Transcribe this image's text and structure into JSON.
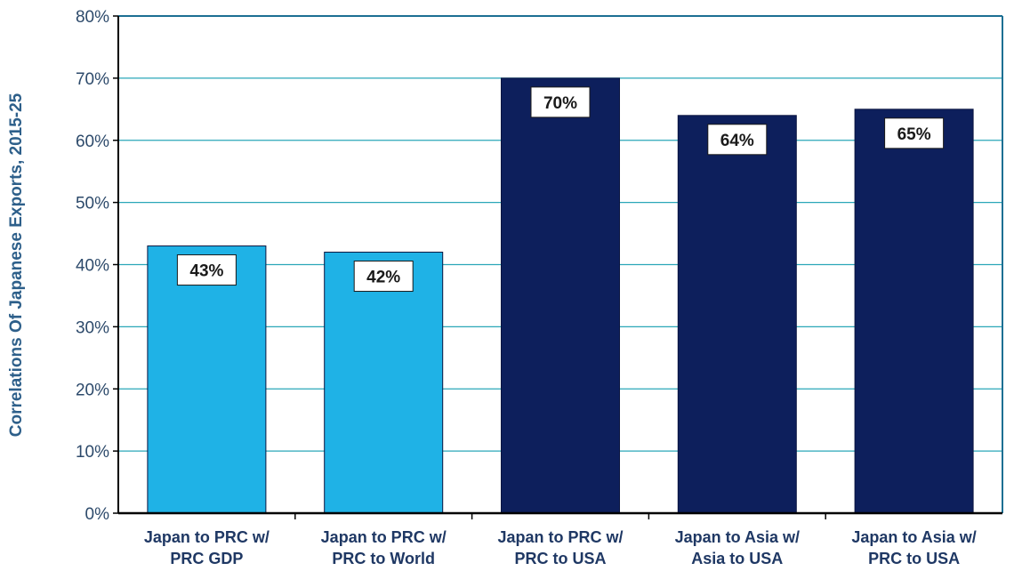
{
  "chart_data": {
    "type": "bar",
    "title": "",
    "xlabel": "",
    "ylabel": "Correlations Of Japanese Exports, 2015-25",
    "ylim": [
      0,
      80
    ],
    "yticks": [
      "0%",
      "10%",
      "20%",
      "30%",
      "40%",
      "50%",
      "60%",
      "70%",
      "80%"
    ],
    "categories": [
      [
        "Japan to PRC w/",
        "PRC GDP"
      ],
      [
        "Japan to PRC w/",
        "PRC to World"
      ],
      [
        "Japan to PRC w/",
        "PRC to USA"
      ],
      [
        "Japan to Asia w/",
        "Asia to USA"
      ],
      [
        "Japan to Asia w/",
        "PRC to USA"
      ]
    ],
    "values": [
      43,
      42,
      70,
      64,
      65
    ],
    "data_labels": [
      "43%",
      "42%",
      "70%",
      "64%",
      "65%"
    ],
    "bar_colors": [
      "#1fb2e6",
      "#1fb2e6",
      "#0d1f5c",
      "#0d1f5c",
      "#0d1f5c"
    ],
    "grid": true,
    "colors": {
      "grid": "#2aa7b8",
      "frame": "#1c6f93",
      "axis": "#000000",
      "label_box_border": "#1a1a1a"
    }
  }
}
